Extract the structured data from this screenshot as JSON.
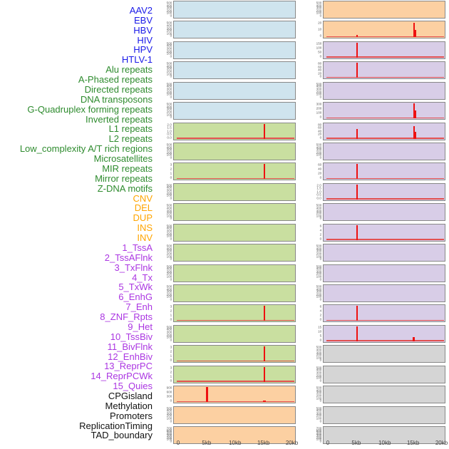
{
  "colors": {
    "background": "#ffffff",
    "panel_border": "#888888",
    "mark_red": "#ee1111",
    "baseline_red": "#e25050",
    "ytick_text": "#5f5f5f",
    "xtick_text": "#444444",
    "panel": {
      "blue": "#cfe4ee",
      "green": "#c9dfa0",
      "orange": "#fcd0a2",
      "purple": "#d8cde7",
      "gray": "#d5d5d5"
    },
    "label": {
      "virus": "#1a1ae8",
      "repeat": "#2e8b2e",
      "sv": "#ffa500",
      "chromatin": "#ab36e2",
      "annotation": "#111111"
    }
  },
  "chart_data": {
    "type": "area",
    "title": "",
    "xlabel": "",
    "ylabel": "",
    "x_axis": {
      "ticks": [
        "0",
        "5kb",
        "10kb",
        "15kb",
        "20kb"
      ],
      "range_kb": [
        0,
        20
      ]
    },
    "layout": {
      "columns": 2,
      "rows_per_column": 22,
      "grid": false,
      "legend": "none"
    },
    "tracks": [
      {
        "label": "AAV2",
        "group": "virus",
        "column": "left",
        "row": 1,
        "panel_color": "blue",
        "y_ticks": [
          "500",
          "400",
          "300",
          "200",
          "100",
          "0"
        ],
        "marks": []
      },
      {
        "label": "EBV",
        "group": "virus",
        "column": "left",
        "row": 2,
        "panel_color": "blue",
        "y_ticks": [
          "500",
          "400",
          "300",
          "200",
          "100",
          "0"
        ],
        "marks": []
      },
      {
        "label": "HBV",
        "group": "virus",
        "column": "left",
        "row": 3,
        "panel_color": "blue",
        "y_ticks": [
          "500",
          "400",
          "300",
          "200",
          "100",
          "0"
        ],
        "marks": []
      },
      {
        "label": "HIV",
        "group": "virus",
        "column": "left",
        "row": 4,
        "panel_color": "blue",
        "y_ticks": [
          "500",
          "400",
          "300",
          "200",
          "100",
          "0"
        ],
        "marks": []
      },
      {
        "label": "HPV",
        "group": "virus",
        "column": "left",
        "row": 5,
        "panel_color": "blue",
        "y_ticks": [
          "500",
          "400",
          "300",
          "200",
          "100",
          "0"
        ],
        "marks": []
      },
      {
        "label": "HTLV-1",
        "group": "virus",
        "column": "left",
        "row": 6,
        "panel_color": "blue",
        "y_ticks": [
          "500",
          "400",
          "300",
          "200",
          "100",
          "0"
        ],
        "marks": []
      },
      {
        "label": "Alu repeats",
        "group": "repeat",
        "column": "left",
        "row": 7,
        "panel_color": "green",
        "y_ticks": [
          "2.0",
          "1.5",
          "1.0",
          "0.5",
          "0.0"
        ],
        "marks": [
          {
            "kb": 15,
            "value": 2.0,
            "hf": 1.0,
            "w": 2
          }
        ]
      },
      {
        "label": "A-Phased repeats",
        "group": "repeat",
        "column": "left",
        "row": 8,
        "panel_color": "green",
        "y_ticks": [
          "500",
          "400",
          "300",
          "200",
          "100",
          "0"
        ],
        "marks": []
      },
      {
        "label": "Directed repeats",
        "group": "repeat",
        "column": "left",
        "row": 9,
        "panel_color": "green",
        "y_ticks": [
          "3",
          "2",
          "1",
          "0"
        ],
        "marks": [
          {
            "kb": 15,
            "value": 3,
            "hf": 1.0,
            "w": 2
          }
        ]
      },
      {
        "label": "DNA transposons",
        "group": "repeat",
        "column": "left",
        "row": 10,
        "panel_color": "green",
        "y_ticks": [
          "500",
          "400",
          "300",
          "200",
          "100",
          "0"
        ],
        "marks": []
      },
      {
        "label": "G-Quadruplex forming repeats",
        "group": "repeat",
        "column": "left",
        "row": 11,
        "panel_color": "green",
        "y_ticks": [
          "500",
          "400",
          "300",
          "200",
          "100",
          "0"
        ],
        "marks": []
      },
      {
        "label": "Inverted repeats",
        "group": "repeat",
        "column": "left",
        "row": 12,
        "panel_color": "green",
        "y_ticks": [
          "500",
          "400",
          "300",
          "200",
          "100",
          "0"
        ],
        "marks": []
      },
      {
        "label": "L1 repeats",
        "group": "repeat",
        "column": "left",
        "row": 13,
        "panel_color": "green",
        "y_ticks": [
          "500",
          "400",
          "300",
          "200",
          "100",
          "0"
        ],
        "marks": []
      },
      {
        "label": "L2 repeats",
        "group": "repeat",
        "column": "left",
        "row": 14,
        "panel_color": "green",
        "y_ticks": [
          "500",
          "400",
          "300",
          "200",
          "100",
          "0"
        ],
        "marks": []
      },
      {
        "label": "Low_complexity A/T rich regions",
        "group": "repeat",
        "column": "left",
        "row": 15,
        "panel_color": "green",
        "y_ticks": [
          "500",
          "400",
          "300",
          "200",
          "100",
          "0"
        ],
        "marks": []
      },
      {
        "label": "Microsatellites",
        "group": "repeat",
        "column": "left",
        "row": 16,
        "panel_color": "green",
        "y_ticks": [
          "3",
          "2",
          "1",
          "0"
        ],
        "marks": [
          {
            "kb": 15,
            "value": 3,
            "hf": 1.0,
            "w": 2
          }
        ]
      },
      {
        "label": "MIR repeats",
        "group": "repeat",
        "column": "left",
        "row": 17,
        "panel_color": "green",
        "y_ticks": [
          "500",
          "400",
          "300",
          "200",
          "100",
          "0"
        ],
        "marks": []
      },
      {
        "label": "Mirror repeats",
        "group": "repeat",
        "column": "left",
        "row": 18,
        "panel_color": "green",
        "y_ticks": [
          "3",
          "2",
          "1",
          "0"
        ],
        "marks": [
          {
            "kb": 15,
            "value": 3,
            "hf": 1.0,
            "w": 2
          }
        ]
      },
      {
        "label": "Z-DNA motifs",
        "group": "repeat",
        "column": "left",
        "row": 19,
        "panel_color": "green",
        "y_ticks": [
          "3",
          "2",
          "1",
          "0"
        ],
        "marks": [
          {
            "kb": 15,
            "value": 3,
            "hf": 1.0,
            "w": 2
          }
        ]
      },
      {
        "label": "CNV",
        "group": "sv",
        "column": "left",
        "row": 20,
        "panel_color": "orange",
        "y_ticks": [
          "900",
          "600",
          "300",
          "0"
        ],
        "marks": [
          {
            "kb": 5,
            "value": 1000,
            "hf": 1.0,
            "w": 3
          },
          {
            "kb": 15,
            "value": 60,
            "hf": 0.12,
            "w": 4
          }
        ]
      },
      {
        "label": "DEL",
        "group": "sv",
        "column": "left",
        "row": 21,
        "panel_color": "orange",
        "y_ticks": [
          "500",
          "400",
          "300",
          "200",
          "100",
          "0"
        ],
        "marks": []
      },
      {
        "label": "DUP",
        "group": "sv",
        "column": "left",
        "row": 22,
        "panel_color": "orange",
        "y_ticks": [
          "700",
          "600",
          "500",
          "400",
          "300",
          "200",
          "100",
          "0"
        ],
        "marks": []
      },
      {
        "label": "INS",
        "group": "sv",
        "column": "right",
        "row": 1,
        "panel_color": "orange",
        "y_ticks": [
          "500",
          "400",
          "300",
          "200",
          "100",
          "0"
        ],
        "marks": []
      },
      {
        "label": "INV",
        "group": "sv",
        "column": "right",
        "row": 2,
        "panel_color": "orange",
        "y_ticks": [
          "20",
          "10",
          "0"
        ],
        "marks": [
          {
            "kb": 15,
            "value": 26,
            "hf": 0.96,
            "w": 2
          },
          {
            "kb": 15.3,
            "value": 14,
            "hf": 0.52,
            "w": 1.5
          },
          {
            "kb": 5,
            "value": 3,
            "hf": 0.14,
            "w": 2
          }
        ]
      },
      {
        "label": "1_TssA",
        "group": "chromatin",
        "column": "right",
        "row": 3,
        "panel_color": "purple",
        "y_ticks": [
          "150",
          "100",
          "50",
          "0"
        ],
        "marks": [
          {
            "kb": 5,
            "value": 160,
            "hf": 1.0,
            "w": 2.5
          }
        ]
      },
      {
        "label": "2_TssAFlnk",
        "group": "chromatin",
        "column": "right",
        "row": 4,
        "panel_color": "purple",
        "y_ticks": [
          "80",
          "60",
          "40",
          "20",
          "0"
        ],
        "marks": [
          {
            "kb": 5,
            "value": 85,
            "hf": 1.0,
            "w": 2.5
          }
        ]
      },
      {
        "label": "3_TxFlnk",
        "group": "chromatin",
        "column": "right",
        "row": 5,
        "panel_color": "purple",
        "y_ticks": [
          "500",
          "400",
          "300",
          "200",
          "100",
          "0"
        ],
        "marks": []
      },
      {
        "label": "4_Tx",
        "group": "chromatin",
        "column": "right",
        "row": 6,
        "panel_color": "purple",
        "y_ticks": [
          "300",
          "200",
          "100",
          "0"
        ],
        "marks": [
          {
            "kb": 15,
            "value": 310,
            "hf": 1.0,
            "w": 2
          },
          {
            "kb": 15.3,
            "value": 170,
            "hf": 0.55,
            "w": 1.5
          }
        ]
      },
      {
        "label": "5_TxWk",
        "group": "chromatin",
        "column": "right",
        "row": 7,
        "panel_color": "purple",
        "y_ticks": [
          "80",
          "60",
          "40",
          "20",
          "0"
        ],
        "marks": [
          {
            "kb": 5,
            "value": 55,
            "hf": 0.66,
            "w": 2
          },
          {
            "kb": 15,
            "value": 68,
            "hf": 0.85,
            "w": 2
          },
          {
            "kb": 15.3,
            "value": 36,
            "hf": 0.45,
            "w": 1.5
          }
        ]
      },
      {
        "label": "6_EnhG",
        "group": "chromatin",
        "column": "right",
        "row": 8,
        "panel_color": "purple",
        "y_ticks": [
          "500",
          "400",
          "300",
          "200",
          "100",
          "0"
        ],
        "marks": []
      },
      {
        "label": "7_Enh",
        "group": "chromatin",
        "column": "right",
        "row": 9,
        "panel_color": "purple",
        "y_ticks": [
          "60",
          "40",
          "20",
          "0"
        ],
        "marks": [
          {
            "kb": 5,
            "value": 65,
            "hf": 1.0,
            "w": 2
          }
        ]
      },
      {
        "label": "8_ZNF_Rpts",
        "group": "chromatin",
        "column": "right",
        "row": 10,
        "panel_color": "purple",
        "y_ticks": [
          "2.0",
          "1.5",
          "1.0",
          "0.5",
          "0.0"
        ],
        "marks": [
          {
            "kb": 5,
            "value": 2.0,
            "hf": 1.0,
            "w": 2.5
          }
        ]
      },
      {
        "label": "9_Het",
        "group": "chromatin",
        "column": "right",
        "row": 11,
        "panel_color": "purple",
        "y_ticks": [
          "500",
          "400",
          "300",
          "200",
          "100",
          "0"
        ],
        "marks": []
      },
      {
        "label": "10_TssBiv",
        "group": "chromatin",
        "column": "right",
        "row": 12,
        "panel_color": "purple",
        "y_ticks": [
          "6",
          "4",
          "2",
          "0"
        ],
        "marks": [
          {
            "kb": 5,
            "value": 6.5,
            "hf": 1.0,
            "w": 2
          }
        ]
      },
      {
        "label": "11_BivFlnk",
        "group": "chromatin",
        "column": "right",
        "row": 13,
        "panel_color": "purple",
        "y_ticks": [
          "500",
          "400",
          "300",
          "200",
          "100",
          "0"
        ],
        "marks": []
      },
      {
        "label": "12_EnhBiv",
        "group": "chromatin",
        "column": "right",
        "row": 14,
        "panel_color": "purple",
        "y_ticks": [
          "500",
          "400",
          "300",
          "200",
          "100",
          "0"
        ],
        "marks": []
      },
      {
        "label": "13_ReprPC",
        "group": "chromatin",
        "column": "right",
        "row": 15,
        "panel_color": "purple",
        "y_ticks": [
          "500",
          "400",
          "300",
          "200",
          "100",
          "0"
        ],
        "marks": []
      },
      {
        "label": "14_ReprPCWk",
        "group": "chromatin",
        "column": "right",
        "row": 16,
        "panel_color": "purple",
        "y_ticks": [
          "6",
          "4",
          "2",
          "0"
        ],
        "marks": [
          {
            "kb": 5,
            "value": 6.5,
            "hf": 1.0,
            "w": 2
          }
        ]
      },
      {
        "label": "15_Quies",
        "group": "chromatin",
        "column": "right",
        "row": 17,
        "panel_color": "purple",
        "y_ticks": [
          "15",
          "10",
          "5",
          "0"
        ],
        "marks": [
          {
            "kb": 5,
            "value": 16,
            "hf": 1.0,
            "w": 2
          },
          {
            "kb": 15,
            "value": 5,
            "hf": 0.3,
            "w": 3
          }
        ]
      },
      {
        "label": "CPGisland",
        "group": "annotation",
        "column": "right",
        "row": 18,
        "panel_color": "gray",
        "y_ticks": [
          "500",
          "400",
          "300",
          "200",
          "100",
          "0"
        ],
        "marks": []
      },
      {
        "label": "Methylation",
        "group": "annotation",
        "column": "right",
        "row": 19,
        "panel_color": "gray",
        "y_ticks": [
          "500",
          "400",
          "300",
          "200",
          "100",
          "0"
        ],
        "marks": []
      },
      {
        "label": "Promoters",
        "group": "annotation",
        "column": "right",
        "row": 20,
        "panel_color": "gray",
        "y_ticks": [
          "500",
          "400",
          "300",
          "200",
          "100",
          "0"
        ],
        "marks": []
      },
      {
        "label": "ReplicationTiming",
        "group": "annotation",
        "column": "right",
        "row": 21,
        "panel_color": "gray",
        "y_ticks": [
          "500",
          "400",
          "300",
          "200",
          "100",
          "0"
        ],
        "marks": []
      },
      {
        "label": "TAD_boundary",
        "group": "annotation",
        "column": "right",
        "row": 22,
        "panel_color": "gray",
        "y_ticks": [
          "700",
          "600",
          "500",
          "400",
          "300",
          "200",
          "100",
          "0"
        ],
        "marks": []
      }
    ]
  }
}
